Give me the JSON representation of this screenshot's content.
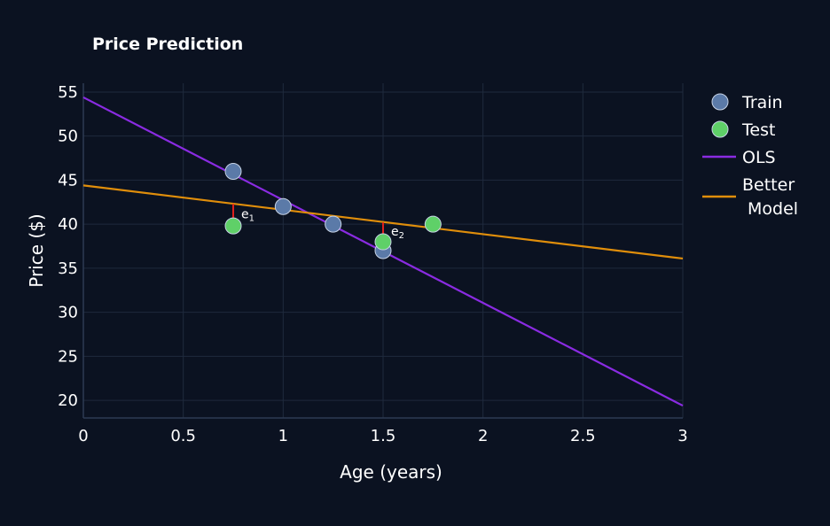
{
  "chart_data": {
    "type": "scatter",
    "title": "Price Prediction",
    "xlabel": "Age (years)",
    "ylabel": "Price ($)",
    "xlim": [
      0,
      3
    ],
    "ylim": [
      18,
      56
    ],
    "xticks": [
      "0",
      "0.5",
      "1",
      "1.5",
      "2",
      "2.5",
      "3"
    ],
    "xtick_values": [
      0,
      0.5,
      1,
      1.5,
      2,
      2.5,
      3
    ],
    "yticks": [
      "20",
      "25",
      "30",
      "35",
      "40",
      "45",
      "50",
      "55"
    ],
    "ytick_values": [
      20,
      25,
      30,
      35,
      40,
      45,
      50,
      55
    ],
    "grid": true,
    "legend_position": "top-right",
    "series": [
      {
        "name": "Train",
        "kind": "markers",
        "color": "#5b7aa8",
        "x": [
          0.75,
          1.0,
          1.25,
          1.5
        ],
        "y": [
          46,
          42,
          40,
          37
        ]
      },
      {
        "name": "Test",
        "kind": "markers",
        "color": "#5fd068",
        "x": [
          0.75,
          1.5,
          1.75
        ],
        "y": [
          39.8,
          38,
          40
        ]
      },
      {
        "name": "OLS",
        "kind": "line",
        "color": "#8a2be2",
        "x": [
          0,
          3
        ],
        "y": [
          54.4,
          19.4
        ]
      },
      {
        "name": "Better Model",
        "kind": "line",
        "color": "#e08e0b",
        "x": [
          0,
          3
        ],
        "y": [
          44.4,
          36.1
        ]
      }
    ],
    "residuals": [
      {
        "label": "e",
        "sub": "1",
        "x": 0.75,
        "y0": 39.8,
        "y1": 42.3,
        "color": "#e0201c"
      },
      {
        "label": "e",
        "sub": "2",
        "x": 1.5,
        "y0": 38,
        "y1": 40.2,
        "color": "#e0201c"
      }
    ]
  }
}
